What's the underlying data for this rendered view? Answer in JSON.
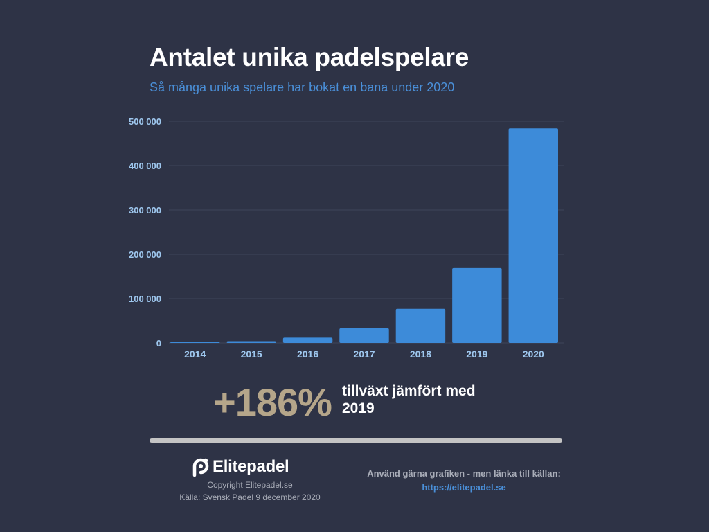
{
  "chart_data": {
    "type": "bar",
    "title": "Antalet unika padelspelare",
    "subtitle": "Så många unika spelare har bokat en bana under 2020",
    "categories": [
      "2014",
      "2015",
      "2016",
      "2017",
      "2018",
      "2019",
      "2020"
    ],
    "values": [
      1000,
      4000,
      12000,
      33000,
      77000,
      169000,
      484000
    ],
    "ylim": [
      0,
      500000
    ],
    "yticks": [
      0,
      100000,
      200000,
      300000,
      400000,
      500000
    ],
    "ytick_labels": [
      "0",
      "100 000",
      "200 000",
      "300 000",
      "400 000",
      "500 000"
    ],
    "grid": true,
    "legend": "none",
    "bar_color": "#3d8bd9",
    "grid_color": "#3f4559"
  },
  "highlight": {
    "value": "+186%",
    "text": "tillväxt jämfört med 2019"
  },
  "footer": {
    "logo_text": "Elitepadel",
    "copyright": "Copyright Elitepadel.se",
    "source": "Källa: Svensk Padel 9 december 2020",
    "use_note": "Använd gärna grafiken - men länka till källan:",
    "link": "https://elitepadel.se"
  }
}
